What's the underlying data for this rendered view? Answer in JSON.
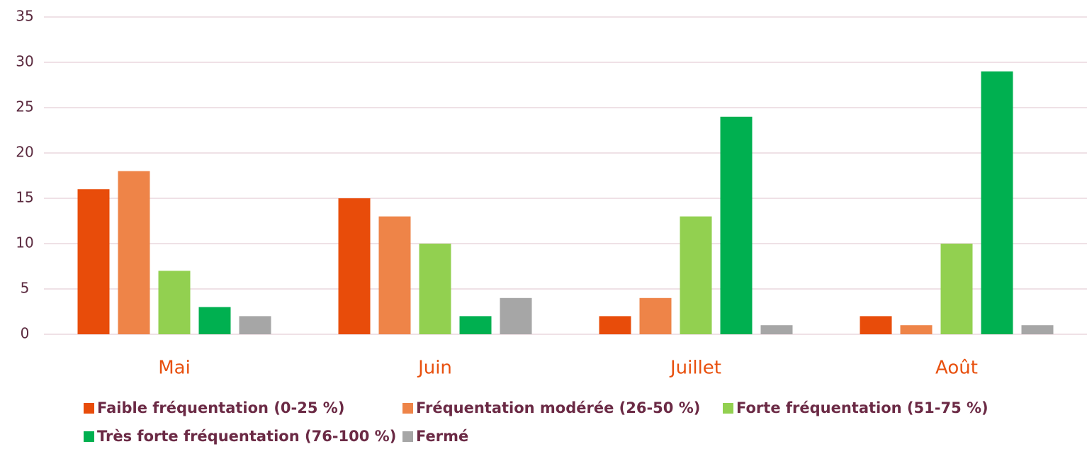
{
  "chart_data": {
    "type": "bar",
    "categories": [
      "Mai",
      "Juin",
      "Juillet",
      "Août"
    ],
    "series": [
      {
        "name": "Faible fréquentation (0-25 %)",
        "color": "#e84c0a",
        "values": [
          16,
          15,
          2,
          2
        ]
      },
      {
        "name": "Fréquentation modérée (26-50 %)",
        "color": "#ee8448",
        "values": [
          18,
          13,
          4,
          1
        ]
      },
      {
        "name": "Forte fréquentation (51-75 %)",
        "color": "#92d050",
        "values": [
          7,
          10,
          13,
          10
        ]
      },
      {
        "name": "Très forte fréquentation (76-100 %)",
        "color": "#00b050",
        "values": [
          3,
          2,
          24,
          29
        ]
      },
      {
        "name": "Fermé",
        "color": "#a6a6a6",
        "values": [
          2,
          4,
          1,
          1
        ]
      }
    ],
    "ylim": [
      0,
      35
    ],
    "yticks": [
      0,
      5,
      10,
      15,
      20,
      25,
      30,
      35
    ],
    "grid": true,
    "legend": "bottom"
  }
}
